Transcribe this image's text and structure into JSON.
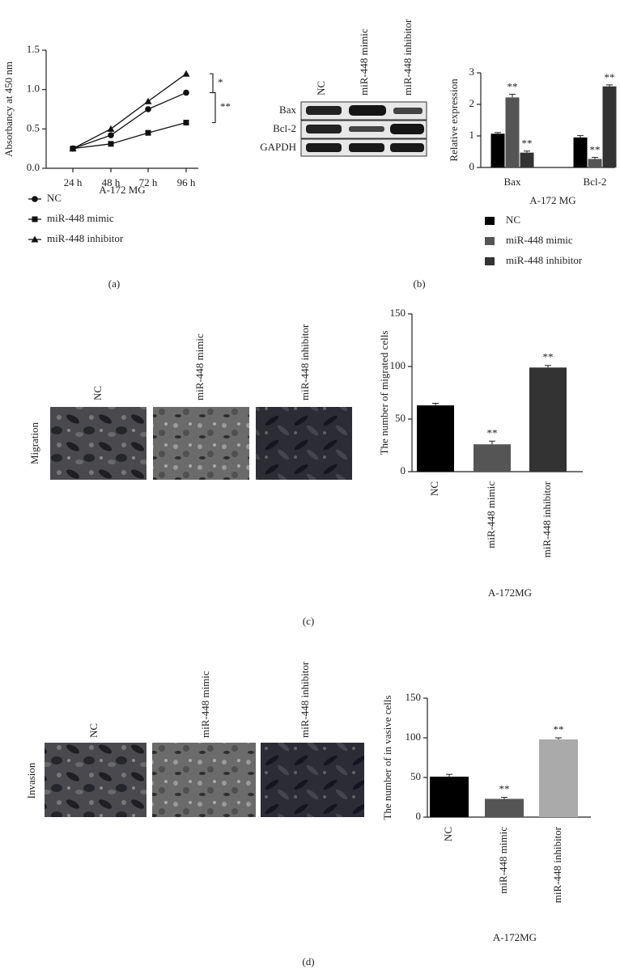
{
  "chart_data": [
    {
      "type": "line",
      "x_label": "A-172 MG",
      "y_label": "Absorbancy at 450 nm",
      "categories": [
        "24 h",
        "48 h",
        "72 h",
        "96 h"
      ],
      "series": [
        {
          "name": "NC",
          "color": "#111111",
          "marker": "circle",
          "values": [
            0.25,
            0.42,
            0.75,
            0.96
          ]
        },
        {
          "name": "miR-448 mimic",
          "color": "#111111",
          "marker": "square",
          "values": [
            0.25,
            0.31,
            0.45,
            0.58
          ]
        },
        {
          "name": "miR-448 inhibitor",
          "color": "#111111",
          "marker": "triangle",
          "values": [
            0.25,
            0.5,
            0.85,
            1.2
          ]
        }
      ],
      "ylim": [
        0,
        1.5
      ],
      "yticks": [
        {
          "value": 0,
          "label": "0.0"
        },
        {
          "value": 0.5,
          "label": "0.5"
        },
        {
          "value": 1,
          "label": "1.0"
        },
        {
          "value": 1.5,
          "label": "1.5"
        }
      ],
      "annotations": [
        "*",
        "**"
      ],
      "panel": "(a)"
    },
    {
      "type": "bar",
      "x_label": "A-172 MG",
      "y_label": "Relative expression",
      "categories": [
        "Bax",
        "Bcl-2"
      ],
      "series": [
        {
          "name": "NC",
          "color": "#000000",
          "values": [
            1.07,
            0.95
          ],
          "errors": [
            0.04,
            0.06
          ]
        },
        {
          "name": "miR-448 mimic",
          "color": "#555555",
          "values": [
            2.22,
            0.27
          ],
          "errors": [
            0.1,
            0.05
          ],
          "significance": [
            "**",
            "**"
          ]
        },
        {
          "name": "miR-448 inhibitor",
          "color": "#333333",
          "values": [
            0.47,
            2.57
          ],
          "errors": [
            0.05,
            0.05
          ],
          "significance": [
            "**",
            "**"
          ]
        }
      ],
      "ylim": [
        0,
        3
      ],
      "yticks": [
        0,
        1,
        2,
        3
      ],
      "panel": "(b)"
    },
    {
      "type": "bar",
      "x_label": "A-172MG",
      "y_label": "The number of migrated cells",
      "categories": [
        "NC",
        "miR-448 mimic",
        "miR-448 inhibitor"
      ],
      "values": [
        63,
        26,
        99
      ],
      "errors": [
        2,
        3,
        2
      ],
      "colors": [
        "#000000",
        "#555555",
        "#333333"
      ],
      "significance": [
        null,
        "**",
        "**"
      ],
      "ylim": [
        0,
        150
      ],
      "yticks": [
        0,
        50,
        100,
        150
      ],
      "panel": "(c)"
    },
    {
      "type": "bar",
      "x_label": "A-172MG",
      "y_label": "The number of in vasive cells",
      "categories": [
        "NC",
        "miR-448 mimic",
        "miR-448 inhibitor"
      ],
      "values": [
        51,
        23,
        98
      ],
      "errors": [
        3,
        2,
        2
      ],
      "colors": [
        "#000000",
        "#555555",
        "#aaaaaa"
      ],
      "significance": [
        null,
        "**",
        "**"
      ],
      "ylim": [
        0,
        150
      ],
      "yticks": [
        0,
        50,
        100,
        150
      ],
      "panel": "(d)"
    }
  ],
  "blot": {
    "columns": [
      "NC",
      "miR-448 mimic",
      "miR-448 inhibitor"
    ],
    "rows": [
      "Bax",
      "Bcl-2",
      "GAPDH"
    ]
  },
  "migration_images": {
    "row_label": "Migration",
    "columns": [
      "NC",
      "miR-448 mimic",
      "miR-448 inhibitor"
    ]
  },
  "invasion_images": {
    "row_label": "Invasion",
    "columns": [
      "NC",
      "miR-448 mimic",
      "miR-448 inhibitor"
    ]
  }
}
